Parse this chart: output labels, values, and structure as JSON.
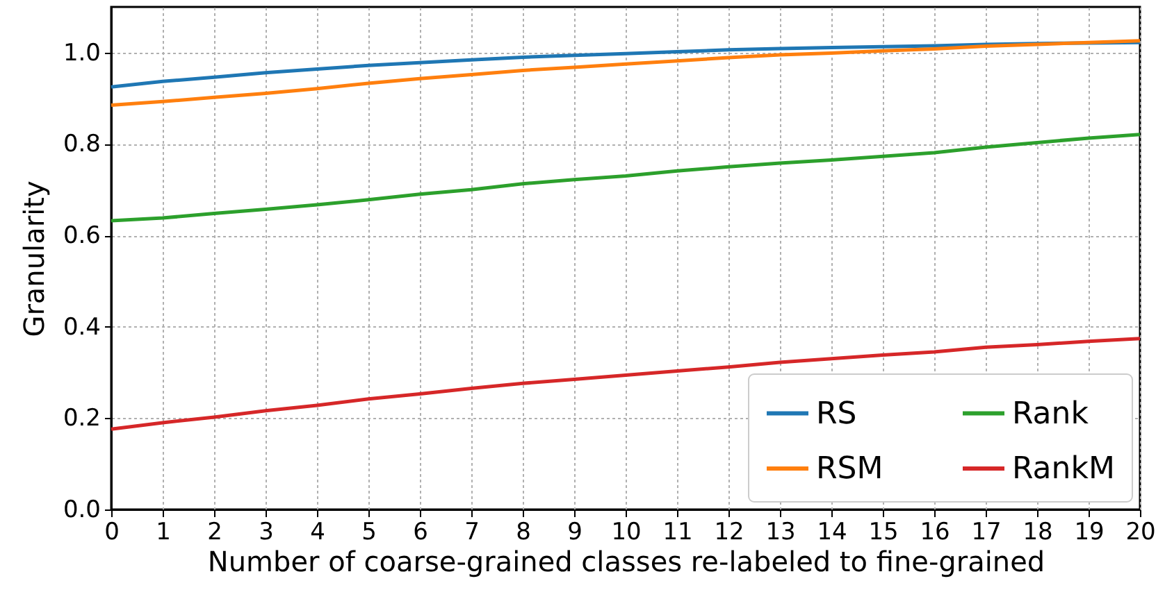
{
  "chart_data": {
    "type": "line",
    "xlabel": "Number of coarse-grained classes re-labeled to fine-grained",
    "ylabel": "Granularity",
    "x": [
      0,
      1,
      2,
      3,
      4,
      5,
      6,
      7,
      8,
      9,
      10,
      11,
      12,
      13,
      14,
      15,
      16,
      17,
      18,
      19,
      20
    ],
    "series": [
      {
        "name": "RS",
        "color": "#1f77b4",
        "values": [
          0.925,
          0.937,
          0.946,
          0.956,
          0.964,
          0.972,
          0.978,
          0.984,
          0.99,
          0.994,
          0.998,
          1.002,
          1.006,
          1.009,
          1.011,
          1.013,
          1.015,
          1.018,
          1.02,
          1.021,
          1.022
        ]
      },
      {
        "name": "RSM",
        "color": "#ff7f0e",
        "values": [
          0.885,
          0.893,
          0.902,
          0.911,
          0.921,
          0.933,
          0.943,
          0.952,
          0.961,
          0.968,
          0.975,
          0.982,
          0.989,
          0.995,
          0.999,
          1.004,
          1.008,
          1.014,
          1.018,
          1.022,
          1.026
        ]
      },
      {
        "name": "Rank",
        "color": "#2ca02c",
        "values": [
          0.632,
          0.638,
          0.648,
          0.657,
          0.667,
          0.678,
          0.69,
          0.7,
          0.713,
          0.722,
          0.73,
          0.741,
          0.75,
          0.758,
          0.765,
          0.773,
          0.781,
          0.793,
          0.803,
          0.813,
          0.821
        ]
      },
      {
        "name": "RankM",
        "color": "#d62728",
        "values": [
          0.176,
          0.19,
          0.202,
          0.216,
          0.228,
          0.242,
          0.253,
          0.265,
          0.276,
          0.285,
          0.294,
          0.303,
          0.312,
          0.322,
          0.33,
          0.338,
          0.345,
          0.355,
          0.361,
          0.368,
          0.374
        ]
      }
    ],
    "xlim": [
      0,
      20
    ],
    "xticks": [
      0,
      1,
      2,
      3,
      4,
      5,
      6,
      7,
      8,
      9,
      10,
      11,
      12,
      13,
      14,
      15,
      16,
      17,
      18,
      19,
      20
    ],
    "ylim": [
      0,
      1.1
    ],
    "yticks": [
      {
        "value": 0,
        "label": "0.0"
      },
      {
        "value": 0.2,
        "label": "0.2"
      },
      {
        "value": 0.4,
        "label": "0.4"
      },
      {
        "value": 0.6,
        "label": "0.6"
      },
      {
        "value": 0.8,
        "label": "0.8"
      },
      {
        "value": 1,
        "label": "1.0"
      }
    ],
    "grid": true,
    "legend": "bottom right"
  }
}
